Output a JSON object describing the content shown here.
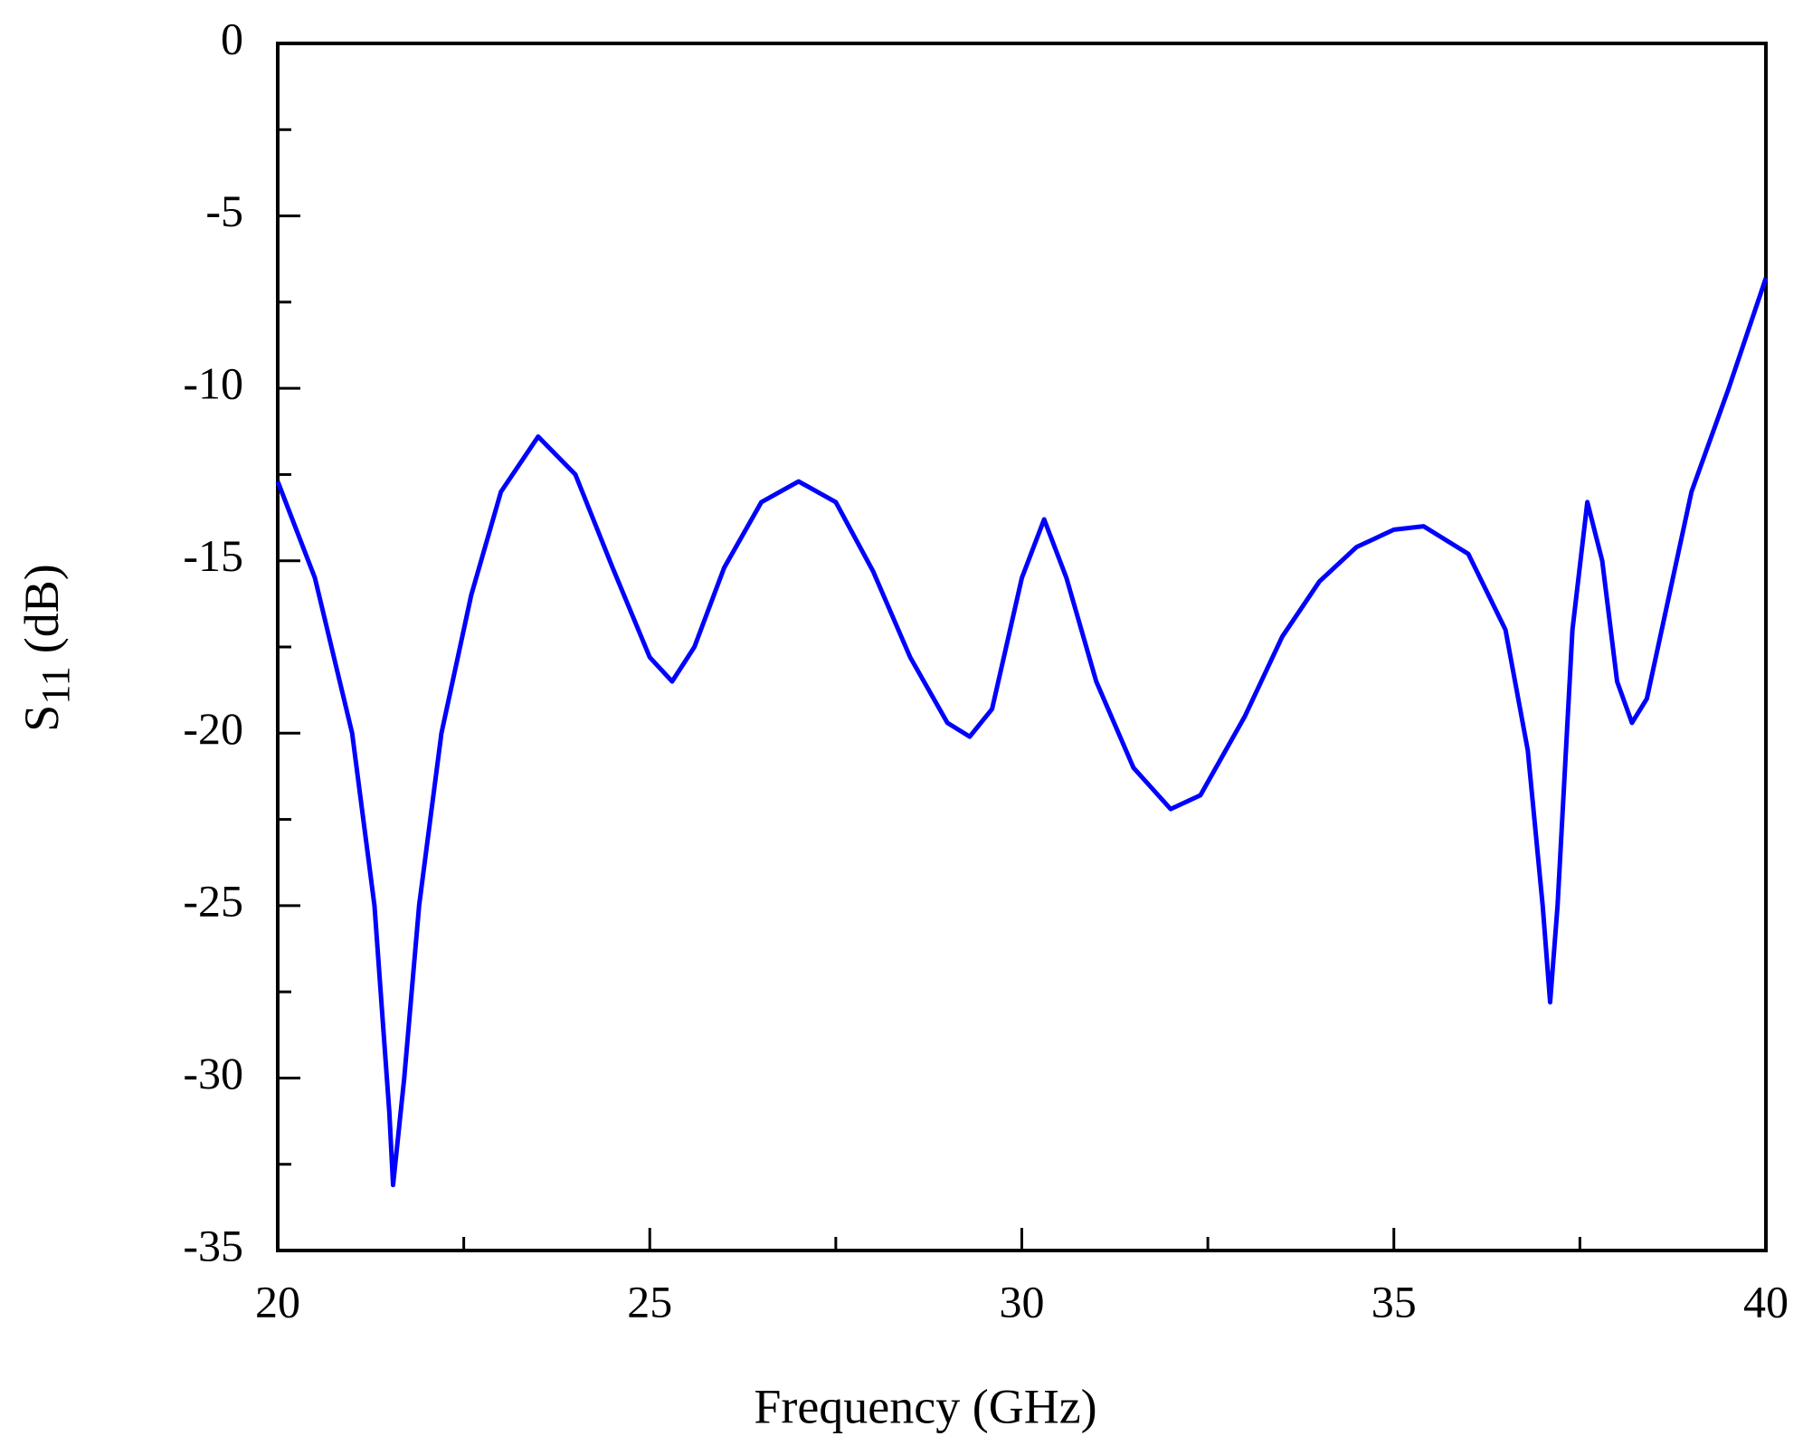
{
  "chart_data": {
    "type": "line",
    "xlabel": "Frequency (GHz)",
    "ylabel": {
      "text": "S",
      "subscript": "11",
      "suffix": "(dB)"
    },
    "x": [
      20,
      20.5,
      21,
      21.3,
      21.5,
      21.55,
      21.7,
      21.9,
      22.2,
      22.6,
      23,
      23.5,
      24,
      24.5,
      25,
      25.3,
      25.6,
      26,
      26.5,
      27,
      27.5,
      28,
      28.5,
      29,
      29.3,
      29.6,
      30,
      30.3,
      30.6,
      31,
      31.5,
      32,
      32.4,
      33,
      33.5,
      34,
      34.5,
      35,
      35.4,
      36,
      36.5,
      36.8,
      37,
      37.1,
      37.2,
      37.4,
      37.6,
      37.8,
      38,
      38.2,
      38.4,
      38.7,
      39,
      39.5,
      40
    ],
    "series": [
      {
        "name": "S11",
        "color": "#0000ff",
        "values": [
          -12.7,
          -15.5,
          -20,
          -25,
          -31,
          -33.1,
          -30,
          -25,
          -20,
          -16,
          -13,
          -11.4,
          -12.5,
          -15.2,
          -17.8,
          -18.5,
          -17.5,
          -15.2,
          -13.3,
          -12.7,
          -13.3,
          -15.3,
          -17.8,
          -19.7,
          -20.1,
          -19.3,
          -15.5,
          -13.8,
          -15.5,
          -18.5,
          -21,
          -22.2,
          -21.8,
          -19.5,
          -17.2,
          -15.6,
          -14.6,
          -14.1,
          -14.0,
          -14.8,
          -17,
          -20.5,
          -25,
          -27.8,
          -25,
          -17,
          -13.3,
          -15,
          -18.5,
          -19.7,
          -19,
          -16,
          -13,
          -10,
          -6.8
        ]
      }
    ],
    "xlim": [
      20,
      40
    ],
    "xticks": [
      20,
      25,
      30,
      35,
      40
    ],
    "xminorticks": [
      22.5,
      27.5,
      32.5,
      37.5
    ],
    "ylim": [
      -35,
      0
    ],
    "yticks": [
      -35,
      -30,
      -25,
      -20,
      -15,
      -10,
      -5,
      0
    ],
    "yminorticks": [
      -32.5,
      -27.5,
      -22.5,
      -17.5,
      -12.5,
      -7.5,
      -2.5
    ],
    "grid": false
  }
}
